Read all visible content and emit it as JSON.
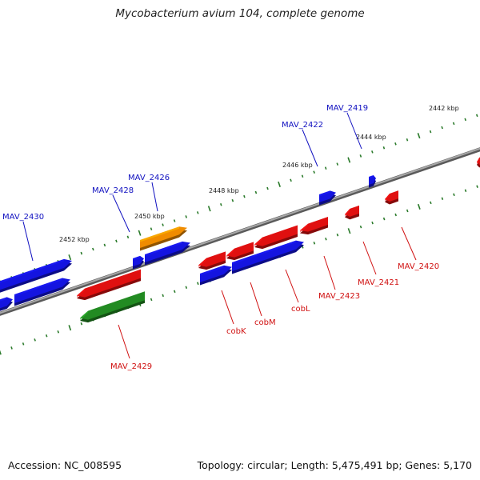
{
  "title": "Mycobacterium avium 104, complete genome",
  "footer": {
    "accession": "Accession: NC_008595",
    "summary": "Topology: circular; Length: 5,475,491 bp; Genes: 5,170"
  },
  "colors": {
    "backbone": "#8a8a8a",
    "tick": "#2a7a2a",
    "forward_gene": "#1414e0",
    "reverse_gene": "#e01010",
    "orange_gene": "#f08c00",
    "green_gene": "#228b22",
    "forward_label": "#1010c0",
    "reverse_label": "#d01010"
  },
  "scale_labels": [
    "2442 kbp",
    "2444 kbp",
    "2446 kbp",
    "2448 kbp",
    "2450 kbp",
    "2452 kbp"
  ],
  "labels_top": [
    "MAV_2419",
    "MAV_2422",
    "MAV_2426",
    "MAV_2428",
    "MAV_2430"
  ],
  "labels_bottom": [
    "MAV_2420",
    "MAV_2421",
    "MAV_2423",
    "cobL",
    "cobM",
    "cobK",
    "MAV_2429"
  ]
}
